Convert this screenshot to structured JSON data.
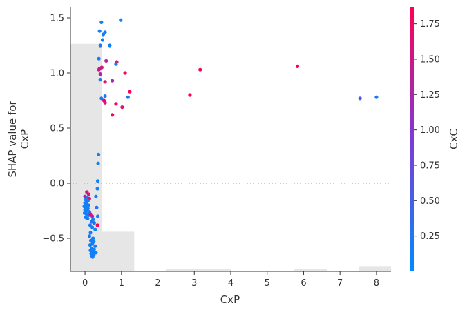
{
  "chart_data": {
    "type": "scatter",
    "title": "",
    "xlabel": "CxP",
    "ylabel_lines": [
      "SHAP value for",
      "CxP"
    ],
    "xlim": [
      -0.4,
      8.4
    ],
    "ylim": [
      -0.8,
      1.6
    ],
    "x_ticks": [
      0,
      1,
      2,
      3,
      4,
      5,
      6,
      7,
      8
    ],
    "y_ticks": [
      -0.5,
      0.0,
      0.5,
      1.0,
      1.5
    ],
    "y_tick_labels": [
      "−0.5",
      "0.0",
      "0.5",
      "1.0",
      "1.5"
    ],
    "zero_line": true,
    "histogram": [
      {
        "x0": -0.4,
        "x1": 0.47,
        "level": 0.86
      },
      {
        "x0": 0.47,
        "x1": 1.35,
        "level": 0.15
      },
      {
        "x0": 2.23,
        "x1": 4.0,
        "level": 0.01
      },
      {
        "x0": 5.75,
        "x1": 6.64,
        "level": 0.01
      },
      {
        "x0": 7.52,
        "x1": 8.4,
        "level": 0.02
      }
    ],
    "colorbar": {
      "label": "CxC",
      "min": 0.0,
      "max": 1.87,
      "ticks": [
        0.25,
        0.5,
        0.75,
        1.0,
        1.25,
        1.5,
        1.75
      ],
      "tick_labels": [
        "0.25",
        "0.50",
        "0.75",
        "1.00",
        "1.25",
        "1.50",
        "1.75"
      ],
      "color_low": "#008bfb",
      "color_mid": "#7d3bd8",
      "color_high": "#ff0051"
    },
    "points": [
      {
        "x": 0.45,
        "y": 1.46,
        "c": 0.1
      },
      {
        "x": 0.98,
        "y": 1.48,
        "c": 0.1
      },
      {
        "x": 0.4,
        "y": 1.38,
        "c": 0.15
      },
      {
        "x": 0.5,
        "y": 1.35,
        "c": 0.2
      },
      {
        "x": 0.55,
        "y": 1.37,
        "c": 0.15
      },
      {
        "x": 0.48,
        "y": 1.3,
        "c": 0.1
      },
      {
        "x": 0.42,
        "y": 1.25,
        "c": 0.2
      },
      {
        "x": 0.68,
        "y": 1.25,
        "c": 0.15
      },
      {
        "x": 0.38,
        "y": 1.13,
        "c": 0.2
      },
      {
        "x": 0.58,
        "y": 1.11,
        "c": 1.4
      },
      {
        "x": 0.87,
        "y": 1.1,
        "c": 1.6
      },
      {
        "x": 0.85,
        "y": 1.08,
        "c": 0.2
      },
      {
        "x": 0.4,
        "y": 1.04,
        "c": 1.8
      },
      {
        "x": 0.46,
        "y": 1.05,
        "c": 1.5
      },
      {
        "x": 0.42,
        "y": 0.99,
        "c": 1.3
      },
      {
        "x": 0.38,
        "y": 1.03,
        "c": 1.5
      },
      {
        "x": 1.1,
        "y": 1.0,
        "c": 1.8
      },
      {
        "x": 0.42,
        "y": 0.94,
        "c": 0.2
      },
      {
        "x": 0.55,
        "y": 0.92,
        "c": 1.7
      },
      {
        "x": 0.75,
        "y": 0.93,
        "c": 1.2
      },
      {
        "x": 1.23,
        "y": 0.83,
        "c": 1.8
      },
      {
        "x": 1.18,
        "y": 0.78,
        "c": 0.2
      },
      {
        "x": 0.45,
        "y": 0.77,
        "c": 0.2
      },
      {
        "x": 0.52,
        "y": 0.75,
        "c": 1.7
      },
      {
        "x": 0.55,
        "y": 0.73,
        "c": 1.6
      },
      {
        "x": 0.55,
        "y": 0.79,
        "c": 0.2
      },
      {
        "x": 0.85,
        "y": 0.72,
        "c": 1.8
      },
      {
        "x": 1.02,
        "y": 0.69,
        "c": 1.7
      },
      {
        "x": 0.75,
        "y": 0.62,
        "c": 1.8
      },
      {
        "x": 3.16,
        "y": 1.03,
        "c": 1.8
      },
      {
        "x": 2.88,
        "y": 0.8,
        "c": 1.8
      },
      {
        "x": 5.83,
        "y": 1.06,
        "c": 1.8
      },
      {
        "x": 7.55,
        "y": 0.77,
        "c": 0.6
      },
      {
        "x": 8.0,
        "y": 0.78,
        "c": 0.2
      },
      {
        "x": 0.37,
        "y": 0.26,
        "c": 0.15
      },
      {
        "x": 0.36,
        "y": 0.18,
        "c": 0.15
      },
      {
        "x": 0.35,
        "y": 0.02,
        "c": 0.1
      },
      {
        "x": 0.34,
        "y": -0.05,
        "c": 0.1
      },
      {
        "x": 0.3,
        "y": -0.12,
        "c": 0.1
      },
      {
        "x": 0.32,
        "y": -0.22,
        "c": 0.3
      },
      {
        "x": 0.35,
        "y": -0.3,
        "c": 0.2
      },
      {
        "x": 0.34,
        "y": -0.38,
        "c": 1.8
      },
      {
        "x": 0.05,
        "y": -0.08,
        "c": 1.5
      },
      {
        "x": 0.1,
        "y": -0.1,
        "c": 1.7
      },
      {
        "x": 0.0,
        "y": -0.12,
        "c": 1.4
      },
      {
        "x": 0.06,
        "y": -0.13,
        "c": 0.3
      },
      {
        "x": 0.12,
        "y": -0.14,
        "c": 1.6
      },
      {
        "x": 0.02,
        "y": -0.15,
        "c": 0.2
      },
      {
        "x": 0.08,
        "y": -0.16,
        "c": 0.1
      },
      {
        "x": 0.0,
        "y": -0.18,
        "c": 0.1
      },
      {
        "x": 0.05,
        "y": -0.19,
        "c": 0.2
      },
      {
        "x": 0.1,
        "y": -0.2,
        "c": 0.1
      },
      {
        "x": -0.02,
        "y": -0.21,
        "c": 0.1
      },
      {
        "x": 0.03,
        "y": -0.22,
        "c": 0.15
      },
      {
        "x": 0.08,
        "y": -0.23,
        "c": 0.1
      },
      {
        "x": 0.0,
        "y": -0.24,
        "c": 0.2
      },
      {
        "x": 0.06,
        "y": -0.25,
        "c": 0.1
      },
      {
        "x": 0.12,
        "y": -0.26,
        "c": 0.15
      },
      {
        "x": -0.01,
        "y": -0.27,
        "c": 0.1
      },
      {
        "x": 0.04,
        "y": -0.28,
        "c": 0.1
      },
      {
        "x": 0.1,
        "y": -0.29,
        "c": 0.2
      },
      {
        "x": 0.15,
        "y": -0.28,
        "c": 1.6
      },
      {
        "x": 0.2,
        "y": -0.3,
        "c": 1.3
      },
      {
        "x": 0.02,
        "y": -0.31,
        "c": 0.1
      },
      {
        "x": 0.07,
        "y": -0.32,
        "c": 0.15
      },
      {
        "x": 0.22,
        "y": -0.33,
        "c": 0.1
      },
      {
        "x": 0.18,
        "y": -0.35,
        "c": 0.2
      },
      {
        "x": 0.25,
        "y": -0.36,
        "c": 0.3
      },
      {
        "x": 0.14,
        "y": -0.38,
        "c": 0.1
      },
      {
        "x": 0.2,
        "y": -0.4,
        "c": 0.15
      },
      {
        "x": 0.28,
        "y": -0.42,
        "c": 0.1
      },
      {
        "x": 0.15,
        "y": -0.45,
        "c": 0.2
      },
      {
        "x": 0.12,
        "y": -0.48,
        "c": 0.3
      },
      {
        "x": 0.22,
        "y": -0.5,
        "c": 0.1
      },
      {
        "x": 0.16,
        "y": -0.52,
        "c": 0.2
      },
      {
        "x": 0.24,
        "y": -0.53,
        "c": 0.1
      },
      {
        "x": 0.2,
        "y": -0.55,
        "c": 0.15
      },
      {
        "x": 0.14,
        "y": -0.56,
        "c": 0.1
      },
      {
        "x": 0.28,
        "y": -0.57,
        "c": 0.2
      },
      {
        "x": 0.18,
        "y": -0.59,
        "c": 0.1
      },
      {
        "x": 0.25,
        "y": -0.6,
        "c": 0.1
      },
      {
        "x": 0.15,
        "y": -0.61,
        "c": 0.2
      },
      {
        "x": 0.22,
        "y": -0.62,
        "c": 0.15
      },
      {
        "x": 0.3,
        "y": -0.63,
        "c": 0.1
      },
      {
        "x": 0.17,
        "y": -0.64,
        "c": 0.1
      },
      {
        "x": 0.24,
        "y": -0.65,
        "c": 0.2
      },
      {
        "x": 0.19,
        "y": -0.66,
        "c": 0.1
      },
      {
        "x": 0.21,
        "y": -0.67,
        "c": 0.15
      }
    ]
  }
}
